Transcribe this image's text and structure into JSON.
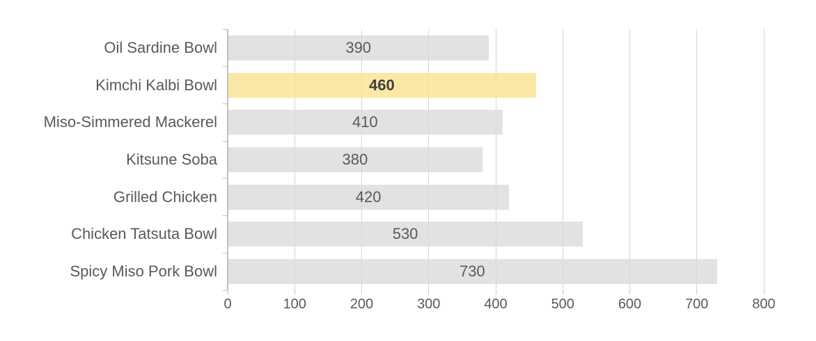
{
  "chart_data": {
    "type": "bar",
    "orientation": "horizontal",
    "categories": [
      "Oil Sardine Bowl",
      "Kimchi Kalbi Bowl",
      "Miso-Simmered Mackerel",
      "Kitsune Soba",
      "Grilled Chicken",
      "Chicken Tatsuta Bowl",
      "Spicy Miso Pork Bowl"
    ],
    "values": [
      390,
      460,
      410,
      380,
      420,
      530,
      730
    ],
    "data_labels": [
      "390",
      "460",
      "410",
      "380",
      "420",
      "530",
      "730"
    ],
    "highlighted_index": 1,
    "highlighted_category": "Kimchi Kalbi Bowl",
    "xlim": [
      0,
      800
    ],
    "x_ticks": [
      0,
      100,
      200,
      300,
      400,
      500,
      600,
      700,
      800
    ],
    "grid": true,
    "legend": false,
    "data_label_position": "center",
    "colors": {
      "bar": "#E2E2E2",
      "highlight_bar": "#FCE8A6",
      "text": "#595959",
      "highlight_text": "#3F3F3F",
      "axis_line": "#BFBFBF",
      "gridline": "#DEDEDE",
      "tick": "#C6C6C6"
    }
  }
}
